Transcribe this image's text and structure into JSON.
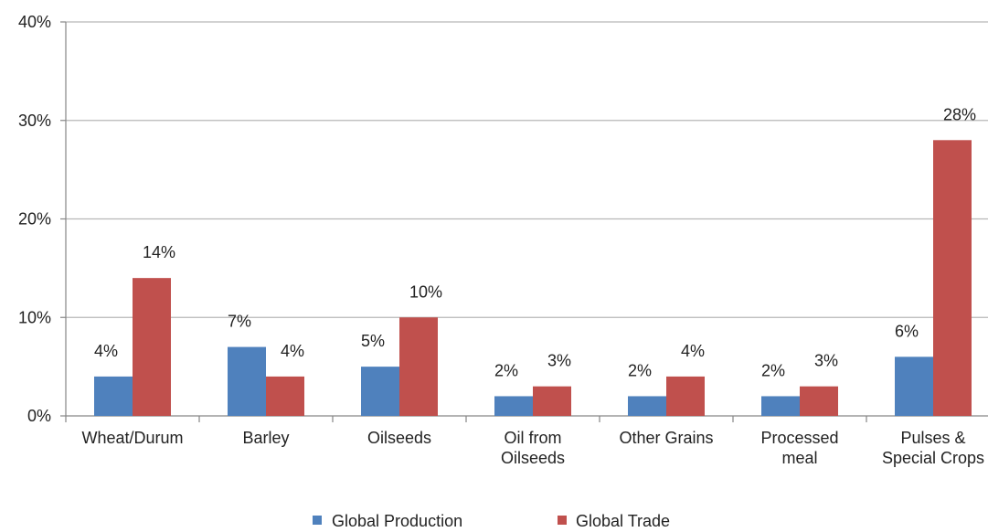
{
  "chart_data": {
    "type": "bar",
    "categories": [
      [
        "Wheat/Durum"
      ],
      [
        "Barley"
      ],
      [
        "Oilseeds"
      ],
      [
        "Oil from",
        "Oilseeds"
      ],
      [
        "Other Grains"
      ],
      [
        "Processed",
        "meal"
      ],
      [
        "Pulses &",
        "Special Crops"
      ]
    ],
    "series": [
      {
        "name": "Global Production",
        "color": "#4f81bd",
        "values": [
          4,
          7,
          5,
          2,
          2,
          2,
          6
        ],
        "labels": [
          "4%",
          "7%",
          "5%",
          "2%",
          "2%",
          "2%",
          "6%"
        ]
      },
      {
        "name": "Global Trade",
        "color": "#c0504d",
        "values": [
          14,
          4,
          10,
          3,
          4,
          3,
          28
        ],
        "labels": [
          "14%",
          "4%",
          "10%",
          "3%",
          "4%",
          "3%",
          "28%"
        ]
      }
    ],
    "ylim": [
      0,
      40
    ],
    "yticks": [
      0,
      10,
      20,
      30,
      40
    ],
    "ytick_labels": [
      "0%",
      "10%",
      "20%",
      "30%",
      "40%"
    ],
    "grid": true,
    "legend_position": "bottom"
  }
}
